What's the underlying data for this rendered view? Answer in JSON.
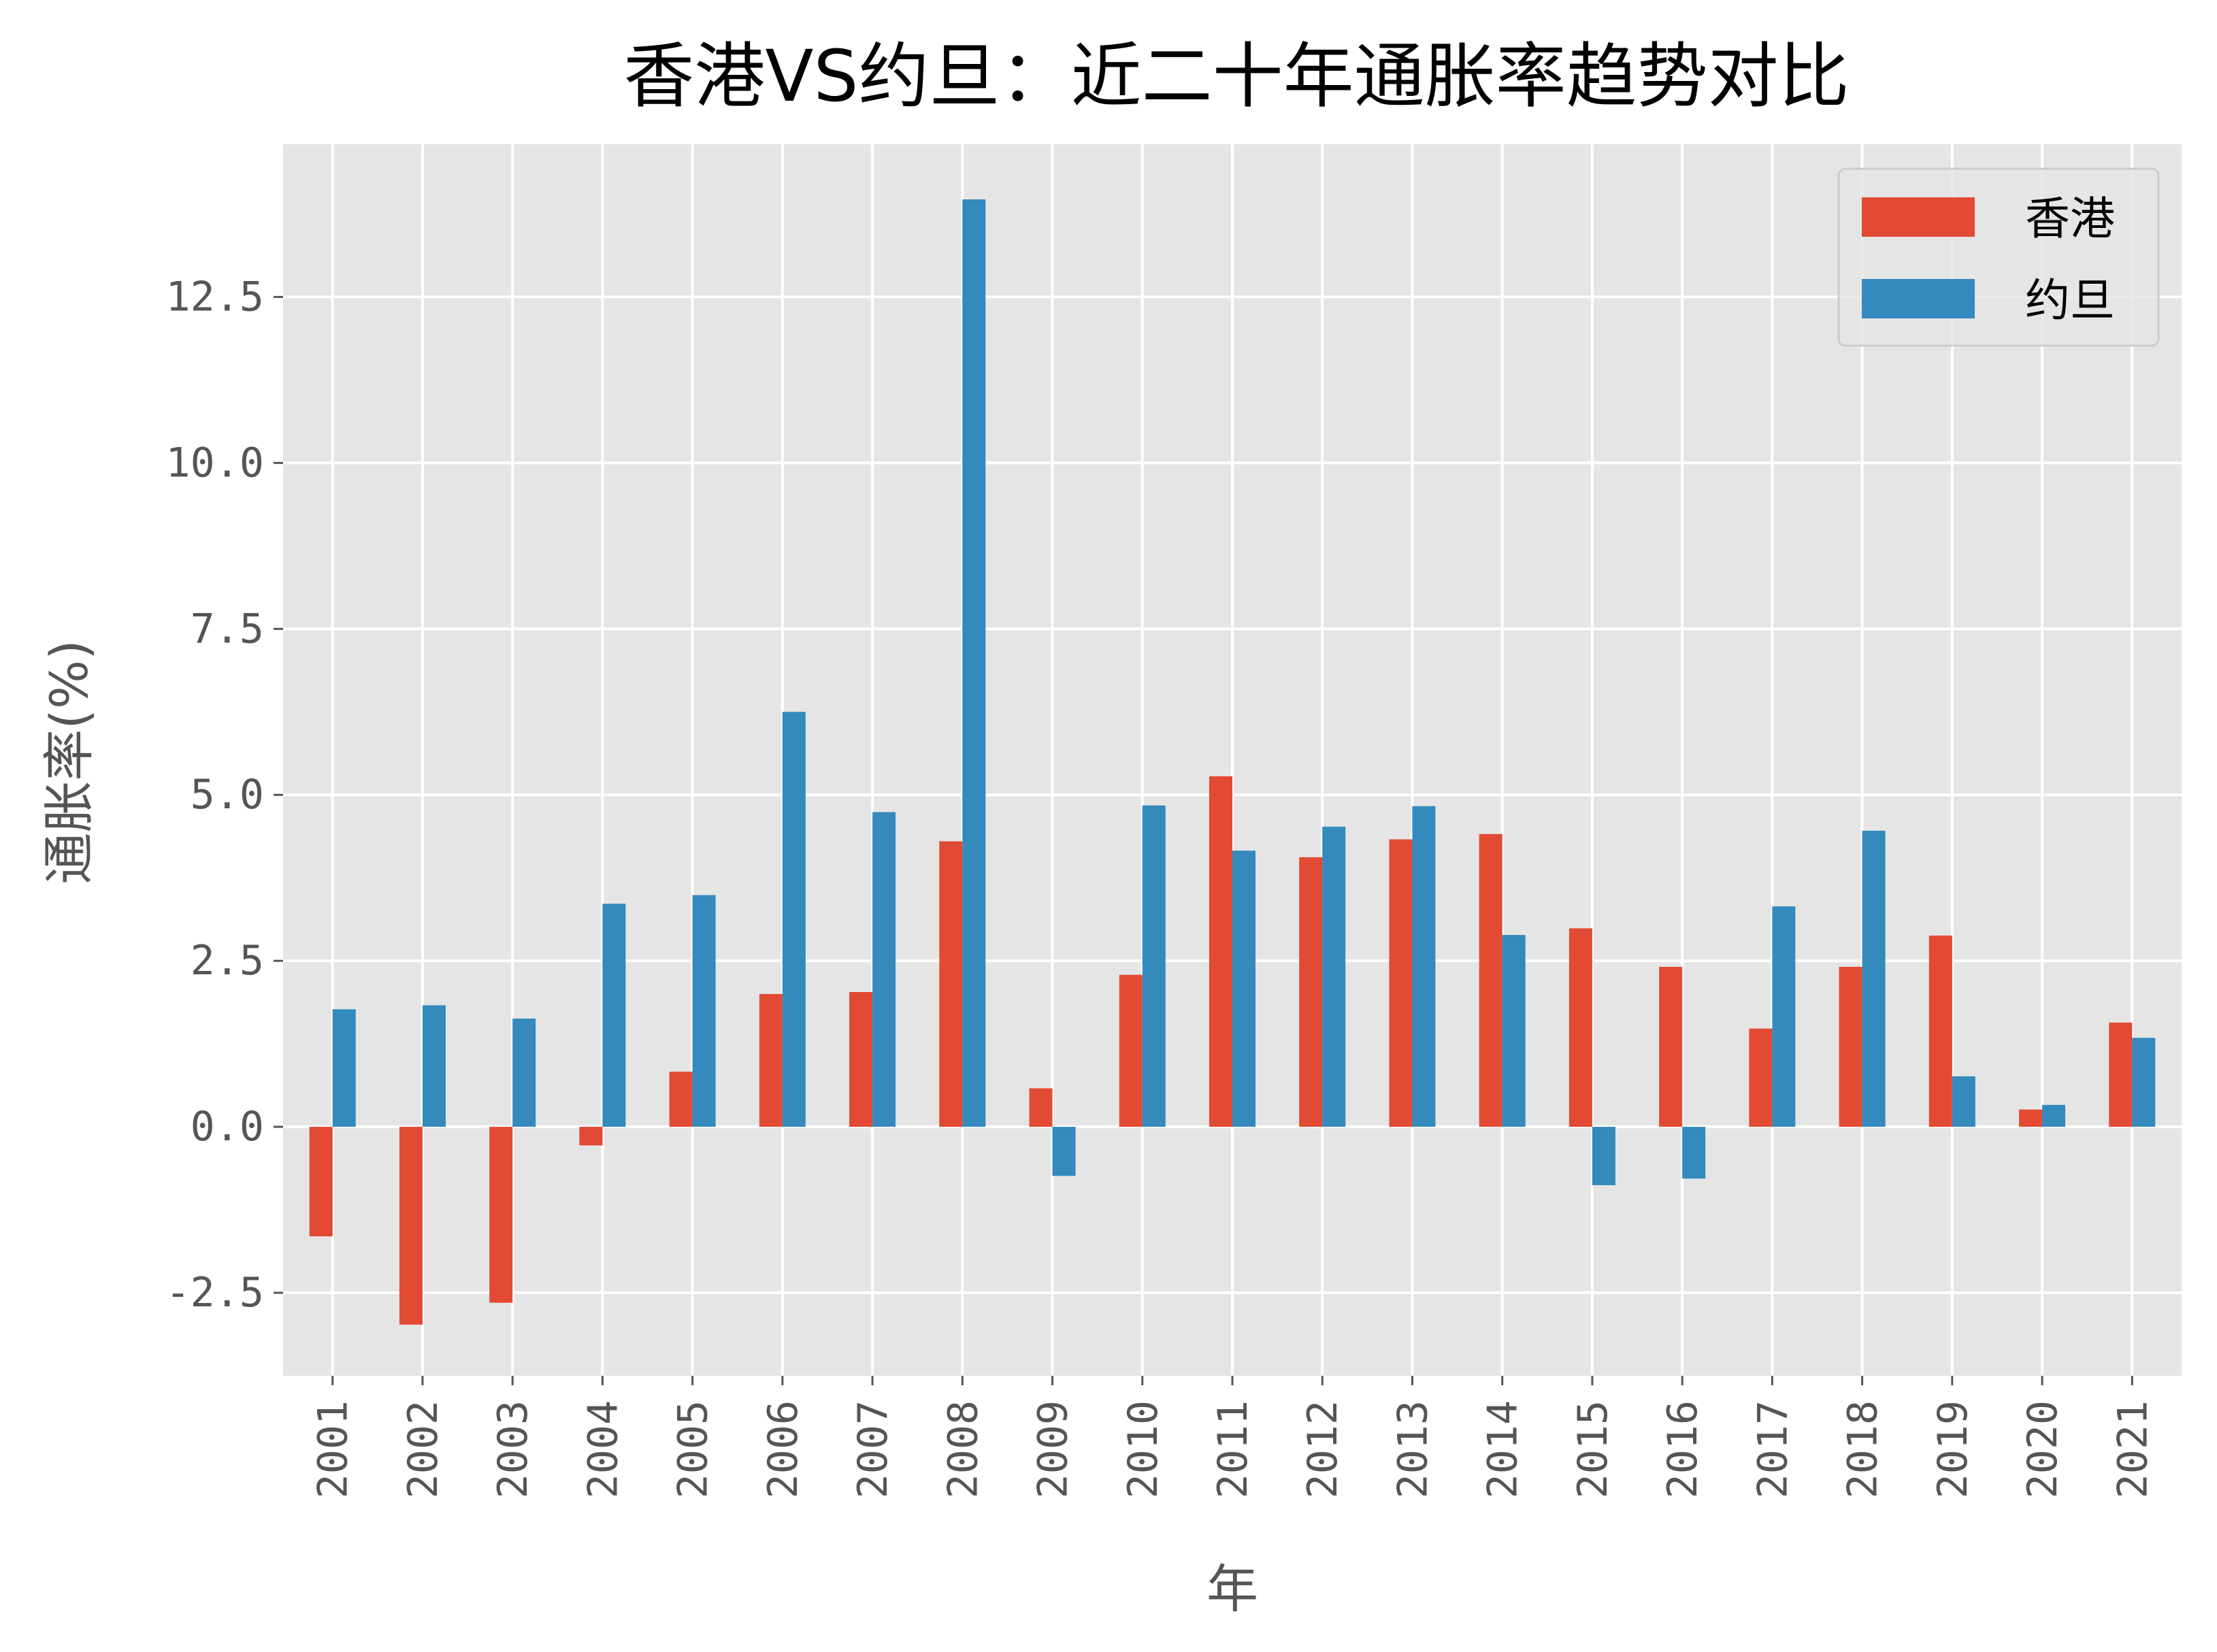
{
  "chart_data": {
    "type": "bar",
    "title": "香港VS约旦：近二十年通胀率趋势对比",
    "xlabel": "年",
    "ylabel": "通胀率(%)",
    "categories": [
      "2001",
      "2002",
      "2003",
      "2004",
      "2005",
      "2006",
      "2007",
      "2008",
      "2009",
      "2010",
      "2011",
      "2012",
      "2013",
      "2014",
      "2015",
      "2016",
      "2017",
      "2018",
      "2019",
      "2020",
      "2021"
    ],
    "series": [
      {
        "name": "香港",
        "color": "#E24A33",
        "values": [
          -1.65,
          -2.98,
          -2.65,
          -0.28,
          0.83,
          2.0,
          2.03,
          4.3,
          0.58,
          2.29,
          5.28,
          4.06,
          4.33,
          4.41,
          2.99,
          2.41,
          1.48,
          2.41,
          2.88,
          0.26,
          1.57
        ]
      },
      {
        "name": "约旦",
        "color": "#348ABD",
        "values": [
          1.77,
          1.83,
          1.63,
          3.36,
          3.49,
          6.25,
          4.74,
          13.97,
          -0.74,
          4.84,
          4.16,
          4.52,
          4.83,
          2.89,
          -0.88,
          -0.78,
          3.32,
          4.46,
          0.76,
          0.33,
          1.34
        ]
      }
    ],
    "yticks": [
      "-2.5",
      "0.0",
      "2.5",
      "5.0",
      "7.5",
      "10.0",
      "12.5"
    ],
    "ylim": [
      -3.75,
      14.8
    ],
    "grid": true,
    "legend_position": "top-right",
    "background_color": "#E5E5E5",
    "grid_color": "#FFFFFF"
  }
}
